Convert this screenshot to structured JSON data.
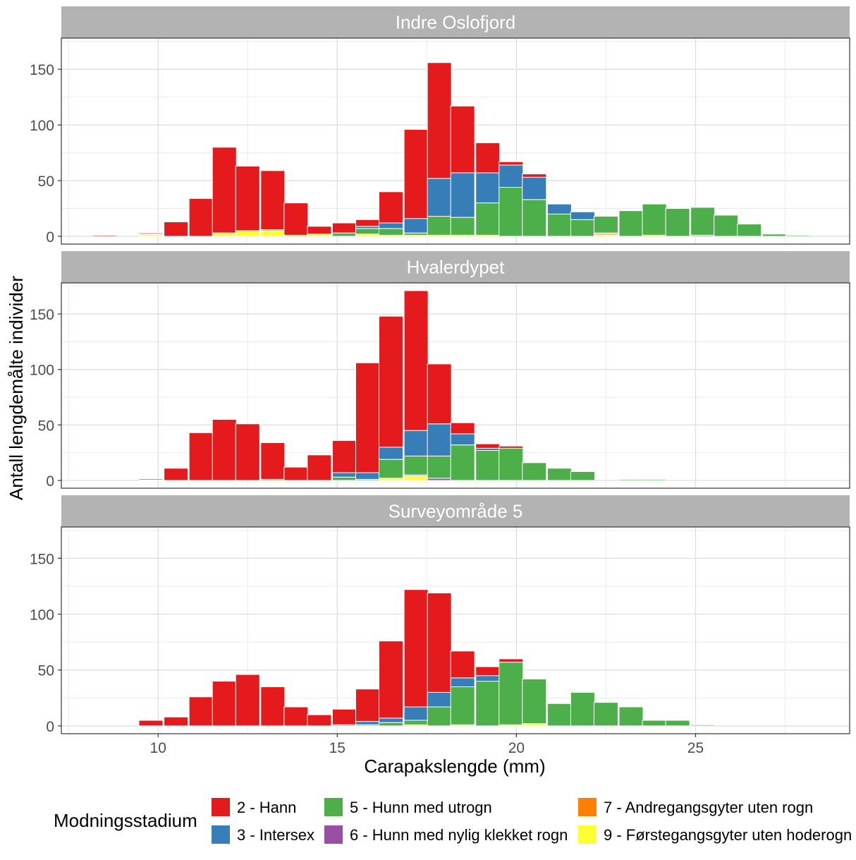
{
  "chart_data": {
    "type": "bar",
    "stacked": true,
    "xlabel": "Carapakslengde (mm)",
    "ylabel": "Antall lengdemålte individer",
    "xlim": [
      7.3,
      29.3
    ],
    "ylim": [
      -7,
      178
    ],
    "x_ticks": [
      10,
      15,
      20,
      25
    ],
    "y_ticks": [
      0,
      50,
      100,
      150
    ],
    "bin_width": 0.67,
    "grid": true,
    "legend_position": "bottom",
    "legend": {
      "title": "Modningsstadium",
      "entries": [
        {
          "key": "2",
          "label": "2 - Hann",
          "color": "#E41A1C"
        },
        {
          "key": "3",
          "label": "3 - Intersex",
          "color": "#377EB8"
        },
        {
          "key": "5",
          "label": "5 - Hunn med utrogn",
          "color": "#4DAF4A"
        },
        {
          "key": "6",
          "label": "6 - Hunn med nylig klekket rogn",
          "color": "#984EA3"
        },
        {
          "key": "7",
          "label": "7 - Andregangsgyter uten rogn",
          "color": "#FF7F00"
        },
        {
          "key": "9",
          "label": "9 - Førstegangsgyter uten hoderogn",
          "color": "#FFFF33"
        }
      ]
    },
    "stack_order": [
      "9",
      "7",
      "6",
      "5",
      "3",
      "2"
    ],
    "panels": [
      {
        "title": "Indre Oslofjord",
        "bins": [
          {
            "x": 8.5,
            "c": {
              "2": 1
            }
          },
          {
            "x": 9.8,
            "c": {
              "9": 1.5,
              "7": 0.5,
              "2": 1
            }
          },
          {
            "x": 10.5,
            "c": {
              "2": 13
            }
          },
          {
            "x": 11.2,
            "c": {
              "2": 34
            }
          },
          {
            "x": 11.85,
            "c": {
              "9": 3,
              "2": 77
            }
          },
          {
            "x": 12.5,
            "c": {
              "9": 5,
              "2": 58
            }
          },
          {
            "x": 13.2,
            "c": {
              "9": 5,
              "5": 1,
              "2": 53
            }
          },
          {
            "x": 13.85,
            "c": {
              "9": 1,
              "2": 29
            }
          },
          {
            "x": 14.5,
            "c": {
              "9": 2,
              "2": 7
            }
          },
          {
            "x": 15.2,
            "c": {
              "5": 3,
              "2": 9
            }
          },
          {
            "x": 15.85,
            "c": {
              "9": 2,
              "5": 5,
              "3": 2,
              "2": 6
            }
          },
          {
            "x": 16.5,
            "c": {
              "9": 1,
              "5": 6,
              "3": 5,
              "2": 28
            }
          },
          {
            "x": 17.2,
            "c": {
              "9": 1,
              "5": 2,
              "3": 13,
              "2": 80
            }
          },
          {
            "x": 17.85,
            "c": {
              "9": 1,
              "5": 17,
              "3": 34,
              "2": 104
            }
          },
          {
            "x": 18.5,
            "c": {
              "9": 1,
              "5": 16,
              "3": 40,
              "2": 60
            }
          },
          {
            "x": 19.2,
            "c": {
              "9": 1,
              "5": 29,
              "3": 27,
              "2": 27
            }
          },
          {
            "x": 19.85,
            "c": {
              "5": 44,
              "3": 20,
              "2": 3
            }
          },
          {
            "x": 20.5,
            "c": {
              "5": 33,
              "3": 20,
              "2": 3
            }
          },
          {
            "x": 21.2,
            "c": {
              "5": 20,
              "3": 9
            }
          },
          {
            "x": 21.85,
            "c": {
              "5": 15,
              "3": 7
            }
          },
          {
            "x": 22.5,
            "c": {
              "9": 1,
              "7": 1,
              "6": 1,
              "5": 15
            }
          },
          {
            "x": 23.2,
            "c": {
              "5": 23
            }
          },
          {
            "x": 23.85,
            "c": {
              "9": 1,
              "5": 28
            }
          },
          {
            "x": 24.5,
            "c": {
              "5": 25
            }
          },
          {
            "x": 25.2,
            "c": {
              "6": 1,
              "5": 25
            }
          },
          {
            "x": 25.85,
            "c": {
              "5": 19
            }
          },
          {
            "x": 26.5,
            "c": {
              "5": 11
            }
          },
          {
            "x": 27.2,
            "c": {
              "5": 2
            }
          },
          {
            "x": 27.85,
            "c": {
              "5": 1
            }
          }
        ]
      },
      {
        "title": "Hvalerdypet",
        "bins": [
          {
            "x": 9.8,
            "c": {
              "6": 0.5,
              "2": 1
            }
          },
          {
            "x": 10.5,
            "c": {
              "2": 11
            }
          },
          {
            "x": 11.2,
            "c": {
              "2": 43
            }
          },
          {
            "x": 11.85,
            "c": {
              "2": 55
            }
          },
          {
            "x": 12.5,
            "c": {
              "2": 51
            }
          },
          {
            "x": 13.2,
            "c": {
              "5": 1,
              "2": 33
            }
          },
          {
            "x": 13.85,
            "c": {
              "2": 12
            }
          },
          {
            "x": 14.5,
            "c": {
              "2": 23
            }
          },
          {
            "x": 15.2,
            "c": {
              "5": 3,
              "3": 4,
              "2": 29
            }
          },
          {
            "x": 15.85,
            "c": {
              "5": 1,
              "3": 6,
              "2": 99
            }
          },
          {
            "x": 16.5,
            "c": {
              "9": 2,
              "5": 17,
              "3": 11,
              "2": 118
            }
          },
          {
            "x": 17.2,
            "c": {
              "9": 4,
              "6": 1,
              "5": 17,
              "3": 23,
              "2": 126
            }
          },
          {
            "x": 17.85,
            "c": {
              "6": 2,
              "5": 20,
              "3": 29,
              "2": 54
            }
          },
          {
            "x": 18.5,
            "c": {
              "5": 32,
              "3": 10,
              "2": 10
            }
          },
          {
            "x": 19.2,
            "c": {
              "5": 27,
              "3": 2,
              "2": 4
            }
          },
          {
            "x": 19.85,
            "c": {
              "5": 29,
              "2": 2
            }
          },
          {
            "x": 20.5,
            "c": {
              "5": 16
            }
          },
          {
            "x": 21.2,
            "c": {
              "5": 11
            }
          },
          {
            "x": 21.85,
            "c": {
              "5": 8
            }
          },
          {
            "x": 23.2,
            "c": {
              "5": 1
            }
          },
          {
            "x": 23.85,
            "c": {
              "5": 1
            }
          }
        ]
      },
      {
        "title": "Surveyområde 5",
        "bins": [
          {
            "x": 9.8,
            "c": {
              "2": 5
            }
          },
          {
            "x": 10.5,
            "c": {
              "2": 8
            }
          },
          {
            "x": 11.2,
            "c": {
              "2": 26
            }
          },
          {
            "x": 11.85,
            "c": {
              "2": 40
            }
          },
          {
            "x": 12.5,
            "c": {
              "2": 46
            }
          },
          {
            "x": 13.2,
            "c": {
              "2": 35
            }
          },
          {
            "x": 13.85,
            "c": {
              "2": 17
            }
          },
          {
            "x": 14.5,
            "c": {
              "2": 10
            }
          },
          {
            "x": 15.2,
            "c": {
              "3": 1,
              "2": 14
            }
          },
          {
            "x": 15.85,
            "c": {
              "5": 1,
              "3": 3,
              "2": 29
            }
          },
          {
            "x": 16.5,
            "c": {
              "5": 3,
              "3": 4,
              "2": 69
            }
          },
          {
            "x": 17.2,
            "c": {
              "9": 1,
              "5": 4,
              "3": 12,
              "2": 105
            }
          },
          {
            "x": 17.85,
            "c": {
              "5": 17,
              "3": 13,
              "2": 89
            }
          },
          {
            "x": 18.5,
            "c": {
              "9": 1,
              "5": 34,
              "3": 8,
              "2": 24
            }
          },
          {
            "x": 19.2,
            "c": {
              "5": 40,
              "3": 5,
              "2": 8
            }
          },
          {
            "x": 19.85,
            "c": {
              "9": 1,
              "5": 56,
              "2": 3
            }
          },
          {
            "x": 20.5,
            "c": {
              "9": 2,
              "5": 40
            }
          },
          {
            "x": 21.2,
            "c": {
              "5": 20
            }
          },
          {
            "x": 21.85,
            "c": {
              "5": 30
            }
          },
          {
            "x": 22.5,
            "c": {
              "5": 21
            }
          },
          {
            "x": 23.2,
            "c": {
              "5": 17
            }
          },
          {
            "x": 23.85,
            "c": {
              "5": 5
            }
          },
          {
            "x": 24.5,
            "c": {
              "5": 5
            }
          },
          {
            "x": 25.2,
            "c": {
              "5": 1
            }
          }
        ]
      }
    ]
  }
}
